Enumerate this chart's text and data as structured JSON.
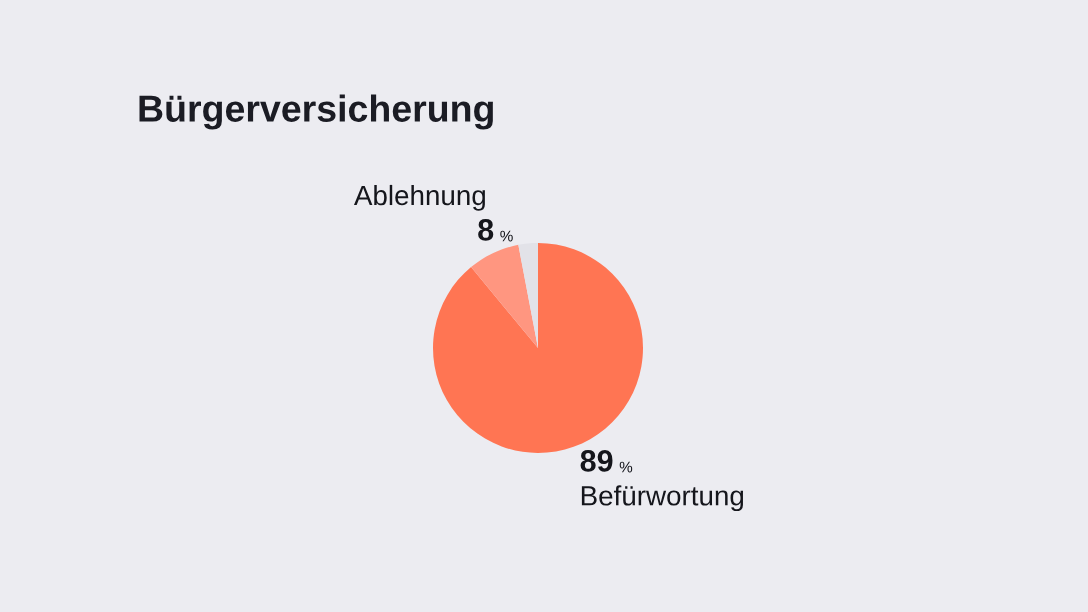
{
  "chart_data": {
    "type": "pie",
    "title": "Bürgerversicherung",
    "categories": [
      "Befürwortung",
      "Ablehnung",
      null
    ],
    "values": [
      89,
      8,
      3
    ],
    "colors": [
      "#ff7553",
      "#ff9680",
      "#e2e2e8"
    ],
    "value_labels": [
      "89 %",
      "8 %",
      null
    ]
  }
}
